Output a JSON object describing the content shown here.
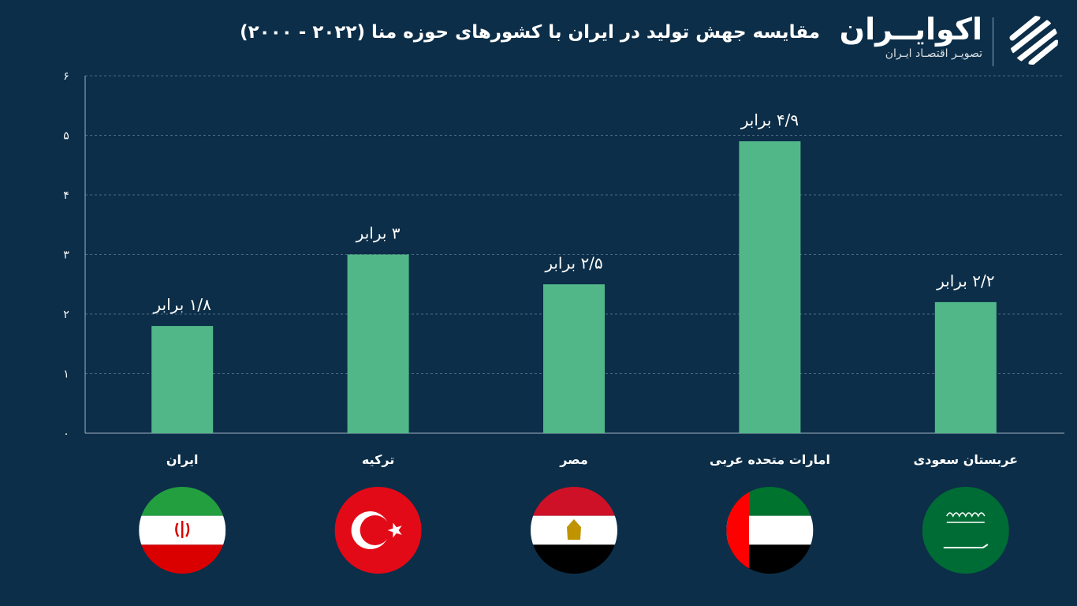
{
  "header": {
    "title": "مقایسه جهش تولید در ایران با کشورهای حوزه منا (۲۰۲۲ - ۲۰۰۰)"
  },
  "logo": {
    "name": "اکوایــران",
    "subtitle": "تصویـر اقتصـاد ایـران"
  },
  "colors": {
    "background": "#0c2e48",
    "bar": "#52b788",
    "grid": "#5f7f96"
  },
  "chart_data": {
    "type": "bar",
    "categories": [
      "ایران",
      "ترکیه",
      "مصر",
      "امارات متحده عربی",
      "عربستان سعودی"
    ],
    "values": [
      1.8,
      3,
      2.5,
      4.9,
      2.2
    ],
    "data_labels": [
      "۱/۸ برابر",
      "۳ برابر",
      "۲/۵ برابر",
      "۴/۹ برابر",
      "۲/۲ برابر"
    ],
    "yticks": [
      "۰",
      "۱",
      "۲",
      "۳",
      "۴",
      "۵",
      "۶"
    ],
    "ylim": [
      0,
      6
    ],
    "grid": true,
    "flags": [
      "iran-flag-icon",
      "turkey-flag-icon",
      "egypt-flag-icon",
      "uae-flag-icon",
      "saudi-flag-icon"
    ]
  }
}
